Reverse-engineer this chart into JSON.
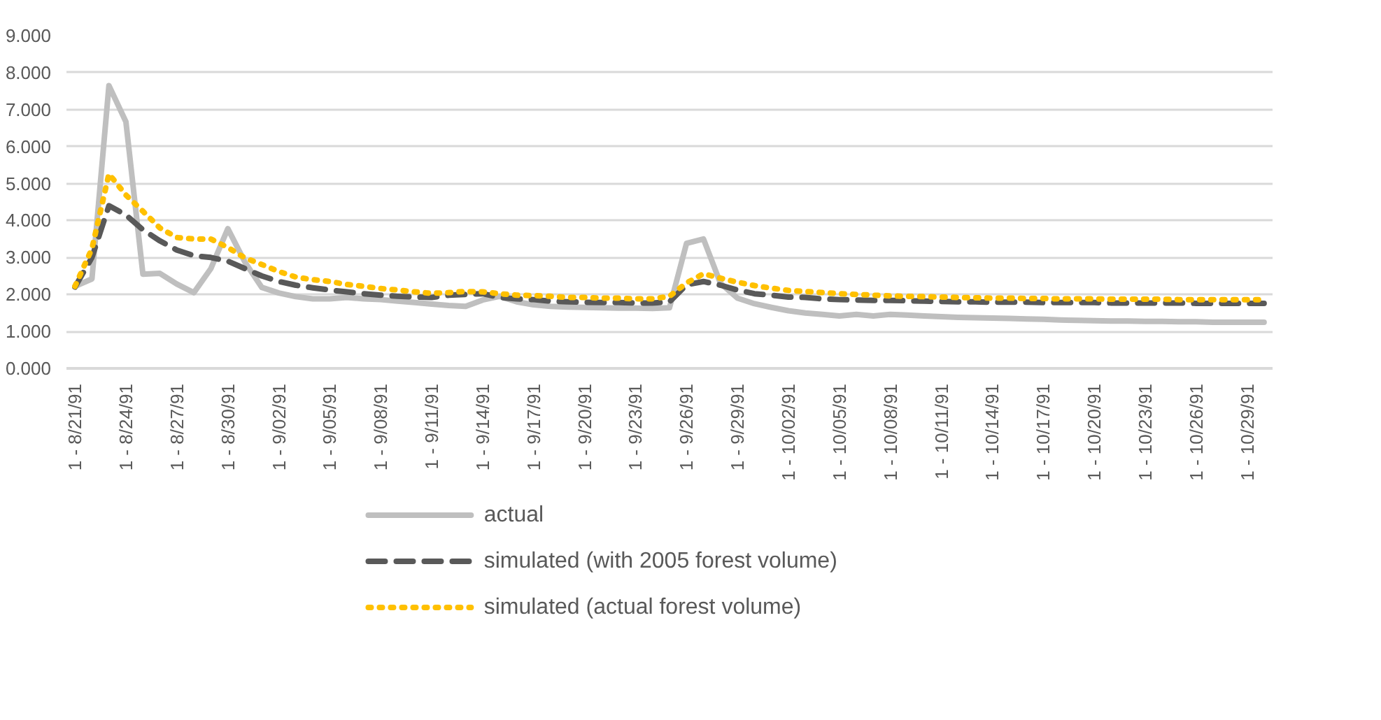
{
  "chart_data": {
    "type": "line",
    "categories": [
      "1 - 8/21/91",
      null,
      null,
      "1 - 8/24/91",
      null,
      null,
      "1 - 8/27/91",
      null,
      null,
      "1 - 8/30/91",
      null,
      null,
      "1 - 9/02/91",
      null,
      null,
      "1 - 9/05/91",
      null,
      null,
      "1 - 9/08/91",
      null,
      null,
      "1 - 9/11/91",
      null,
      null,
      "1 - 9/14/91",
      null,
      null,
      "1 - 9/17/91",
      null,
      null,
      "1 - 9/20/91",
      null,
      null,
      "1 - 9/23/91",
      null,
      null,
      "1 - 9/26/91",
      null,
      null,
      "1 - 9/29/91",
      null,
      null,
      "1 - 10/02/91",
      null,
      null,
      "1 - 10/05/91",
      null,
      null,
      "1 - 10/08/91",
      null,
      null,
      "1 - 10/11/91",
      null,
      null,
      "1 - 10/14/91",
      null,
      null,
      "1 - 10/17/91",
      null,
      null,
      "1 - 10/20/91",
      null,
      null,
      "1 - 10/23/91",
      null,
      null,
      "1 - 10/26/91",
      null,
      null,
      "1 - 10/29/91",
      null
    ],
    "series": [
      {
        "name": "actual",
        "color": "#bfbfbf",
        "line_style": "solid",
        "values": [
          2.22,
          2.42,
          7.65,
          6.67,
          2.55,
          2.57,
          2.28,
          2.05,
          2.7,
          3.78,
          2.88,
          2.19,
          2.04,
          1.94,
          1.88,
          1.88,
          1.92,
          1.88,
          1.86,
          1.82,
          1.78,
          1.74,
          1.7,
          1.68,
          1.85,
          1.95,
          1.8,
          1.72,
          1.68,
          1.66,
          1.65,
          1.64,
          1.63,
          1.63,
          1.62,
          1.64,
          3.38,
          3.5,
          2.3,
          1.9,
          1.75,
          1.65,
          1.56,
          1.5,
          1.46,
          1.42,
          1.46,
          1.42,
          1.46,
          1.44,
          1.42,
          1.4,
          1.38,
          1.37,
          1.36,
          1.35,
          1.34,
          1.33,
          1.31,
          1.3,
          1.29,
          1.28,
          1.28,
          1.27,
          1.27,
          1.26,
          1.26,
          1.25,
          1.25,
          1.25,
          1.25
        ]
      },
      {
        "name": "simulated (with 2005 forest volume)",
        "color": "#595959",
        "line_style": "dashed",
        "values": [
          2.2,
          3.0,
          4.4,
          4.15,
          3.75,
          3.45,
          3.2,
          3.05,
          3.0,
          2.9,
          2.7,
          2.5,
          2.35,
          2.25,
          2.18,
          2.12,
          2.07,
          2.02,
          1.98,
          1.95,
          1.93,
          1.92,
          1.98,
          2.0,
          2.02,
          1.92,
          1.88,
          1.86,
          1.82,
          1.8,
          1.79,
          1.78,
          1.78,
          1.77,
          1.77,
          1.8,
          2.26,
          2.35,
          2.25,
          2.12,
          2.02,
          1.98,
          1.93,
          1.92,
          1.88,
          1.86,
          1.85,
          1.84,
          1.84,
          1.83,
          1.82,
          1.81,
          1.8,
          1.8,
          1.79,
          1.79,
          1.79,
          1.78,
          1.78,
          1.78,
          1.78,
          1.77,
          1.77,
          1.77,
          1.77,
          1.77,
          1.76,
          1.76,
          1.76,
          1.76,
          1.76
        ]
      },
      {
        "name": "simulated (actual forest volume)",
        "color": "#ffc000",
        "line_style": "dotted",
        "values": [
          2.22,
          3.24,
          5.26,
          4.69,
          4.25,
          3.8,
          3.54,
          3.5,
          3.5,
          3.27,
          2.99,
          2.81,
          2.62,
          2.47,
          2.4,
          2.35,
          2.27,
          2.22,
          2.16,
          2.12,
          2.07,
          2.03,
          2.05,
          2.08,
          2.07,
          2.02,
          1.98,
          1.97,
          1.95,
          1.92,
          1.92,
          1.9,
          1.9,
          1.88,
          1.88,
          1.95,
          2.31,
          2.56,
          2.44,
          2.33,
          2.24,
          2.17,
          2.11,
          2.08,
          2.05,
          2.02,
          2.0,
          1.98,
          1.96,
          1.95,
          1.94,
          1.93,
          1.92,
          1.91,
          1.9,
          1.9,
          1.89,
          1.89,
          1.88,
          1.88,
          1.88,
          1.87,
          1.87,
          1.87,
          1.87,
          1.86,
          1.86,
          1.86,
          1.86,
          1.86,
          1.86
        ]
      }
    ],
    "ylim": [
      0,
      9
    ],
    "yticks": [
      {
        "value": 0,
        "label": "0.000"
      },
      {
        "value": 1,
        "label": "1.000"
      },
      {
        "value": 2,
        "label": "2.000"
      },
      {
        "value": 3,
        "label": "3.000"
      },
      {
        "value": 4,
        "label": "4.000"
      },
      {
        "value": 5,
        "label": "5.000"
      },
      {
        "value": 6,
        "label": "6.000"
      },
      {
        "value": 7,
        "label": "7.000"
      },
      {
        "value": 8,
        "label": "8.000"
      },
      {
        "value": 9,
        "label": "9.000"
      }
    ],
    "grid": "y",
    "legend": "bottom"
  }
}
